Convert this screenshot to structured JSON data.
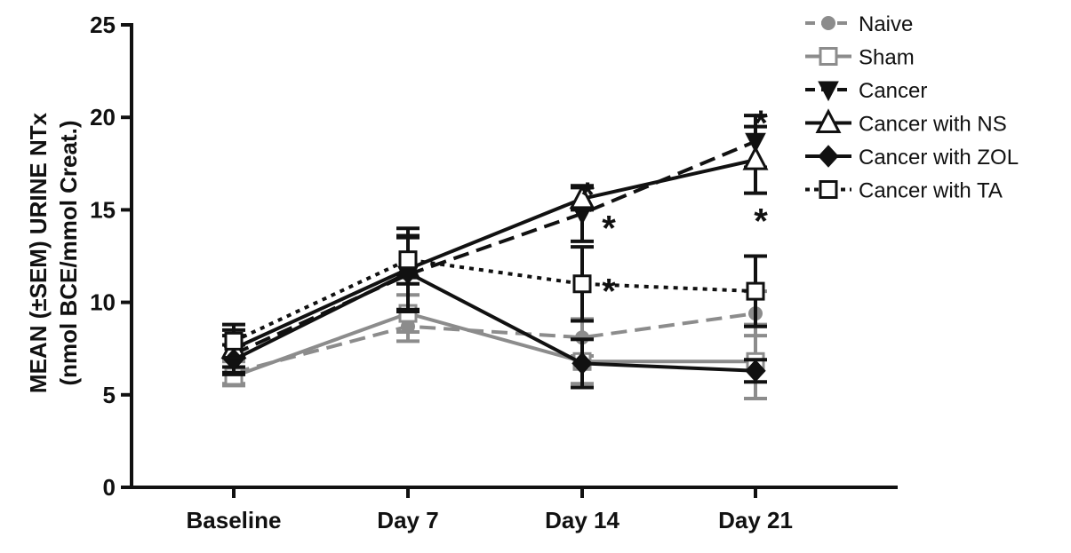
{
  "chart_data": {
    "type": "line",
    "title": "",
    "ylabel_line1": "MEAN (±SEM) URINE NTx",
    "ylabel_line2": "(nmol BCE/mmol Creat.)",
    "xlabel": "",
    "categories": [
      "Baseline",
      "Day 7",
      "Day 14",
      "Day 21"
    ],
    "ylim": [
      0,
      25
    ],
    "yticks": [
      0,
      5,
      10,
      15,
      20,
      25
    ],
    "legend_position": "top-right",
    "grid": false,
    "series": [
      {
        "name": "Naive",
        "values": [
          6.2,
          8.7,
          8.1,
          9.4
        ],
        "sem": [
          0.6,
          0.8,
          1.0,
          1.2
        ],
        "color": "#8c8c8c",
        "dash": "long",
        "marker": "circle-filled"
      },
      {
        "name": "Sham",
        "values": [
          6.0,
          9.4,
          6.8,
          6.8
        ],
        "sem": [
          0.5,
          1.0,
          1.2,
          2.0
        ],
        "color": "#8c8c8c",
        "dash": "solid",
        "marker": "square-open"
      },
      {
        "name": "Cancer",
        "values": [
          7.2,
          11.5,
          14.8,
          18.7
        ],
        "sem": [
          1.0,
          2.0,
          1.5,
          1.4
        ],
        "color": "#111111",
        "dash": "long",
        "marker": "triangle-down-filled"
      },
      {
        "name": "Cancer with NS",
        "values": [
          7.5,
          11.8,
          15.6,
          17.7
        ],
        "sem": [
          1.0,
          2.2,
          0.6,
          1.8
        ],
        "color": "#111111",
        "dash": "solid",
        "marker": "triangle-up-open"
      },
      {
        "name": "Cancer with ZOL",
        "values": [
          6.9,
          11.6,
          6.7,
          6.3
        ],
        "sem": [
          0.8,
          2.0,
          1.3,
          0.6
        ],
        "color": "#111111",
        "dash": "solid",
        "marker": "diamond-filled"
      },
      {
        "name": "Cancer with TA",
        "values": [
          7.9,
          12.3,
          11.0,
          10.6
        ],
        "sem": [
          0.9,
          1.3,
          2.0,
          1.9
        ],
        "color": "#111111",
        "dash": "dot",
        "marker": "square-open"
      }
    ],
    "annotations": [
      {
        "text": "*",
        "category": "Day 14",
        "y": 16.4
      },
      {
        "text": "*",
        "category": "Day 14",
        "y": 14.6
      },
      {
        "text": "*",
        "category": "Day 14",
        "y": 11.2
      },
      {
        "text": "*",
        "category": "Day 21",
        "y": 20.3
      },
      {
        "text": "*",
        "category": "Day 21",
        "y": 15.0
      }
    ]
  }
}
